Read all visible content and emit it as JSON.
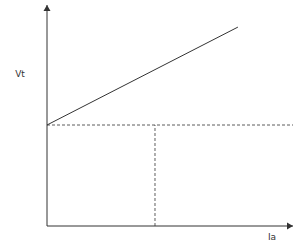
{
  "chart_data": {
    "type": "line",
    "x_label": "Ia",
    "y_label": "Vt",
    "xlim": [
      0,
      100
    ],
    "ylim": [
      0,
      100
    ],
    "tick_labels": false,
    "grid": false,
    "series": [
      {
        "color": "#333333",
        "line_style": "solid",
        "x": [
          0,
          77.6
        ],
        "values": [
          45.7,
          90.0
        ]
      },
      {
        "color": "#333333",
        "line_style": "dashed",
        "x": [
          0,
          100
        ],
        "values": [
          45.7,
          45.7
        ]
      },
      {
        "color": "#333333",
        "line_style": "dashed",
        "x": [
          43.9,
          43.9
        ],
        "values": [
          0,
          45.7
        ]
      }
    ]
  }
}
